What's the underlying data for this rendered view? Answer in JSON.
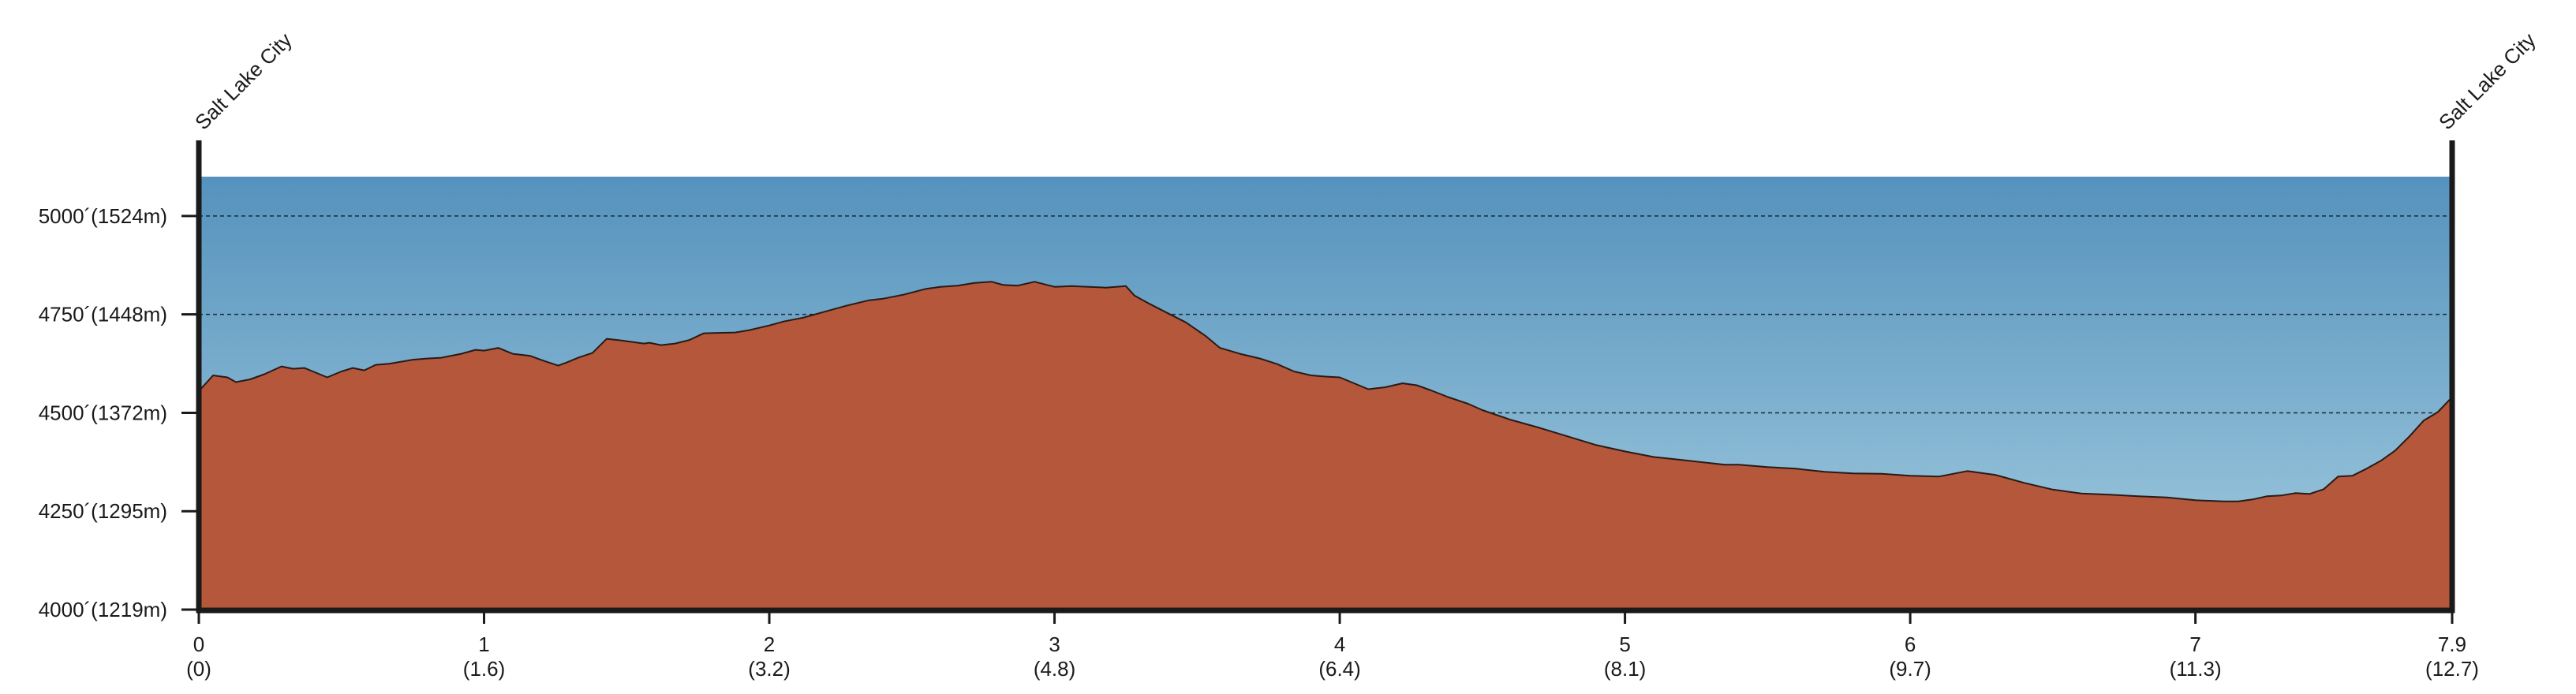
{
  "chart_data": {
    "type": "area",
    "title": "",
    "xlabel": "",
    "ylabel": "",
    "start_label": "Salt Lake City",
    "end_label": "Salt Lake City",
    "xlim": [
      0,
      7.9
    ],
    "ylim": [
      4000,
      5100
    ],
    "x_ticks": [
      {
        "value": 0,
        "label": "0",
        "sublabel": "(0)"
      },
      {
        "value": 1,
        "label": "1",
        "sublabel": "(1.6)"
      },
      {
        "value": 2,
        "label": "2",
        "sublabel": "(3.2)"
      },
      {
        "value": 3,
        "label": "3",
        "sublabel": "(4.8)"
      },
      {
        "value": 4,
        "label": "4",
        "sublabel": "(6.4)"
      },
      {
        "value": 5,
        "label": "5",
        "sublabel": "(8.1)"
      },
      {
        "value": 6,
        "label": "6",
        "sublabel": "(9.7)"
      },
      {
        "value": 7,
        "label": "7",
        "sublabel": "(11.3)"
      },
      {
        "value": 7.9,
        "label": "7.9",
        "sublabel": "(12.7)"
      }
    ],
    "y_ticks": [
      {
        "value": 4000,
        "label": "4000´(1219m)"
      },
      {
        "value": 4250,
        "label": "4250´(1295m)"
      },
      {
        "value": 4500,
        "label": "4500´(1372m)"
      },
      {
        "value": 4750,
        "label": "4750´(1448m)"
      },
      {
        "value": 5000,
        "label": "5000´(1524m)"
      }
    ],
    "gridlines": [
      4500,
      4750,
      5000
    ],
    "colors": {
      "sky_top": "#5592bd",
      "sky_bottom": "#a4cde0",
      "terrain": "#b5573b",
      "terrain_edge": "#2a1a14",
      "axis": "#1a1a1a"
    },
    "x": [
      0,
      0.05,
      0.1,
      0.13,
      0.18,
      0.23,
      0.29,
      0.33,
      0.37,
      0.4,
      0.45,
      0.5,
      0.54,
      0.58,
      0.62,
      0.67,
      0.75,
      0.8,
      0.85,
      0.92,
      0.97,
      1.0,
      1.05,
      1.1,
      1.16,
      1.21,
      1.26,
      1.29,
      1.33,
      1.38,
      1.43,
      1.48,
      1.52,
      1.56,
      1.58,
      1.62,
      1.67,
      1.72,
      1.77,
      1.82,
      1.88,
      1.93,
      2.0,
      2.05,
      2.12,
      2.2,
      2.27,
      2.35,
      2.4,
      2.47,
      2.55,
      2.6,
      2.66,
      2.72,
      2.78,
      2.82,
      2.87,
      2.93,
      3.0,
      3.06,
      3.12,
      3.18,
      3.25,
      3.28,
      3.33,
      3.4,
      3.46,
      3.53,
      3.58,
      3.65,
      3.72,
      3.78,
      3.84,
      3.9,
      3.95,
      4.0,
      4.05,
      4.1,
      4.16,
      4.22,
      4.27,
      4.32,
      4.38,
      4.45,
      4.5,
      4.6,
      4.7,
      4.8,
      4.9,
      5.0,
      5.1,
      5.2,
      5.3,
      5.35,
      5.4,
      5.5,
      5.6,
      5.7,
      5.8,
      5.9,
      6.0,
      6.1,
      6.2,
      6.3,
      6.4,
      6.5,
      6.6,
      6.7,
      6.8,
      6.9,
      7.0,
      7.1,
      7.15,
      7.2,
      7.25,
      7.3,
      7.35,
      7.4,
      7.45,
      7.5,
      7.55,
      7.6,
      7.65,
      7.7,
      7.75,
      7.8,
      7.85,
      7.9
    ],
    "elevation": [
      4555,
      4595,
      4590,
      4578,
      4585,
      4598,
      4618,
      4612,
      4614,
      4605,
      4590,
      4605,
      4614,
      4608,
      4622,
      4625,
      4635,
      4638,
      4640,
      4650,
      4660,
      4658,
      4665,
      4650,
      4645,
      4632,
      4620,
      4628,
      4640,
      4652,
      4688,
      4684,
      4680,
      4676,
      4678,
      4672,
      4676,
      4685,
      4702,
      4703,
      4704,
      4710,
      4722,
      4732,
      4742,
      4758,
      4772,
      4786,
      4790,
      4800,
      4815,
      4820,
      4823,
      4830,
      4833,
      4825,
      4823,
      4833,
      4820,
      4822,
      4820,
      4818,
      4822,
      4798,
      4778,
      4752,
      4730,
      4695,
      4665,
      4650,
      4638,
      4624,
      4605,
      4595,
      4592,
      4590,
      4575,
      4560,
      4565,
      4575,
      4570,
      4557,
      4540,
      4523,
      4507,
      4482,
      4462,
      4440,
      4418,
      4402,
      4388,
      4380,
      4372,
      4368,
      4368,
      4362,
      4358,
      4350,
      4346,
      4345,
      4340,
      4338,
      4352,
      4342,
      4322,
      4305,
      4295,
      4292,
      4288,
      4285,
      4278,
      4275,
      4275,
      4280,
      4288,
      4290,
      4296,
      4294,
      4306,
      4338,
      4340,
      4358,
      4378,
      4404,
      4440,
      4480,
      4502,
      4540
    ]
  }
}
